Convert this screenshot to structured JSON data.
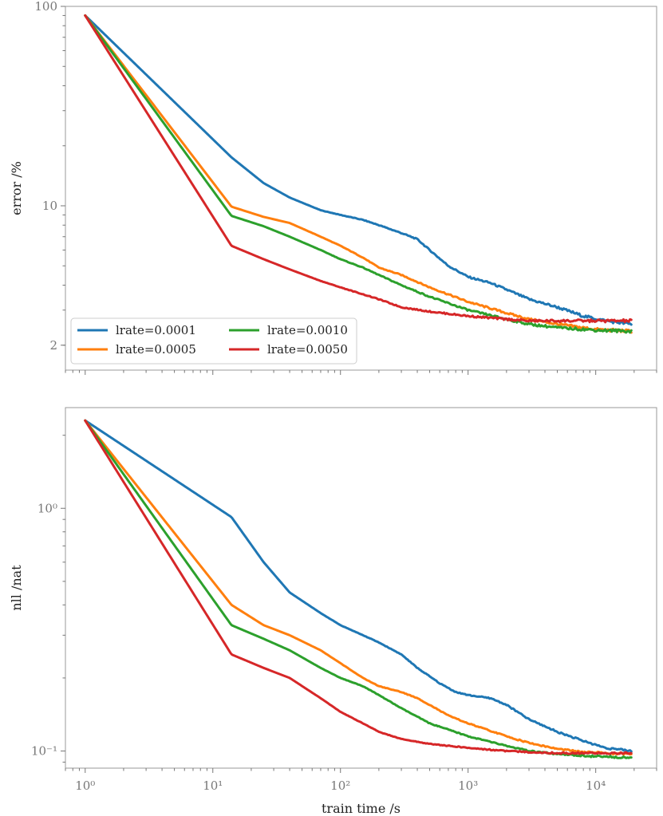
{
  "chart_data": [
    {
      "type": "line",
      "xscale": "log",
      "yscale": "log",
      "xlabel": "",
      "ylabel": "error /%",
      "xlim": [
        0.7,
        30000
      ],
      "ylim": [
        1.5,
        100
      ],
      "yticks": [
        {
          "value": 100,
          "label": "100"
        },
        {
          "value": 10,
          "label": "10"
        },
        {
          "value": 2,
          "label": "2"
        }
      ],
      "legend": {
        "placement": "lower-left",
        "columns": 2
      },
      "series": [
        {
          "name": "lrate=0.0001",
          "color": "#1f77b4",
          "x": [
            1,
            14,
            25,
            40,
            70,
            100,
            150,
            200,
            300,
            400,
            500,
            700,
            1000,
            1500,
            2000,
            3000,
            5000,
            8000,
            12000,
            19000
          ],
          "y": [
            90,
            17.5,
            13,
            11,
            9.5,
            9.0,
            8.5,
            8.0,
            7.3,
            6.8,
            6.0,
            5.0,
            4.4,
            4.1,
            3.8,
            3.4,
            3.1,
            2.8,
            2.65,
            2.55
          ]
        },
        {
          "name": "lrate=0.0005",
          "color": "#ff7f0e",
          "x": [
            1,
            14,
            25,
            40,
            70,
            100,
            150,
            200,
            300,
            500,
            1000,
            2000,
            3000,
            5000,
            10000,
            19000
          ],
          "y": [
            90,
            9.9,
            8.8,
            8.2,
            7.0,
            6.3,
            5.5,
            4.9,
            4.5,
            3.9,
            3.3,
            2.9,
            2.7,
            2.55,
            2.4,
            2.35
          ]
        },
        {
          "name": "lrate=0.0010",
          "color": "#2ca02c",
          "x": [
            1,
            14,
            25,
            40,
            70,
            100,
            150,
            200,
            300,
            500,
            1000,
            2000,
            3000,
            5000,
            10000,
            19000
          ],
          "y": [
            90,
            8.9,
            7.9,
            7.0,
            6.0,
            5.4,
            4.9,
            4.5,
            4.0,
            3.5,
            3.0,
            2.7,
            2.55,
            2.45,
            2.38,
            2.35
          ]
        },
        {
          "name": "lrate=0.0050",
          "color": "#d62728",
          "x": [
            1,
            14,
            25,
            40,
            70,
            100,
            150,
            200,
            300,
            500,
            1000,
            2000,
            3000,
            5000,
            10000,
            19000
          ],
          "y": [
            90,
            6.3,
            5.4,
            4.8,
            4.2,
            3.9,
            3.6,
            3.4,
            3.1,
            2.95,
            2.8,
            2.7,
            2.65,
            2.65,
            2.65,
            2.65
          ]
        }
      ]
    },
    {
      "type": "line",
      "xscale": "log",
      "yscale": "log",
      "xlabel": "train time /s",
      "ylabel": "nll /nat",
      "xlim": [
        0.7,
        30000
      ],
      "ylim": [
        0.085,
        2.6
      ],
      "yticks": [
        {
          "value": 1,
          "label": "10⁰"
        },
        {
          "value": 0.1,
          "label": "10⁻¹"
        }
      ],
      "xticks": [
        {
          "value": 1,
          "label": "10⁰"
        },
        {
          "value": 10,
          "label": "10¹"
        },
        {
          "value": 100,
          "label": "10²"
        },
        {
          "value": 1000,
          "label": "10³"
        },
        {
          "value": 10000,
          "label": "10⁴"
        }
      ],
      "series": [
        {
          "name": "lrate=0.0001",
          "color": "#1f77b4",
          "x": [
            1,
            14,
            25,
            40,
            70,
            100,
            150,
            200,
            300,
            400,
            600,
            800,
            1000,
            1500,
            2000,
            3000,
            5000,
            8000,
            12000,
            19000
          ],
          "y": [
            2.3,
            0.92,
            0.6,
            0.45,
            0.37,
            0.33,
            0.3,
            0.28,
            0.25,
            0.22,
            0.19,
            0.175,
            0.17,
            0.165,
            0.155,
            0.135,
            0.12,
            0.11,
            0.103,
            0.1
          ]
        },
        {
          "name": "lrate=0.0005",
          "color": "#ff7f0e",
          "x": [
            1,
            14,
            25,
            40,
            70,
            100,
            150,
            200,
            300,
            400,
            500,
            700,
            1000,
            2000,
            3000,
            5000,
            8000,
            12000,
            19000
          ],
          "y": [
            2.3,
            0.4,
            0.33,
            0.3,
            0.26,
            0.23,
            0.2,
            0.185,
            0.175,
            0.165,
            0.155,
            0.14,
            0.13,
            0.115,
            0.108,
            0.102,
            0.099,
            0.098,
            0.097
          ]
        },
        {
          "name": "lrate=0.0010",
          "color": "#2ca02c",
          "x": [
            1,
            14,
            25,
            40,
            70,
            100,
            150,
            200,
            300,
            500,
            1000,
            2000,
            3000,
            5000,
            10000,
            19000
          ],
          "y": [
            2.3,
            0.33,
            0.29,
            0.26,
            0.22,
            0.2,
            0.185,
            0.17,
            0.15,
            0.13,
            0.115,
            0.105,
            0.1,
            0.097,
            0.095,
            0.094
          ]
        },
        {
          "name": "lrate=0.0050",
          "color": "#d62728",
          "x": [
            1,
            14,
            25,
            40,
            70,
            100,
            150,
            200,
            300,
            500,
            1000,
            2000,
            3000,
            5000,
            10000,
            19000
          ],
          "y": [
            2.3,
            0.25,
            0.22,
            0.2,
            0.165,
            0.145,
            0.13,
            0.12,
            0.112,
            0.107,
            0.103,
            0.1,
            0.099,
            0.098,
            0.098,
            0.098
          ]
        }
      ]
    }
  ]
}
